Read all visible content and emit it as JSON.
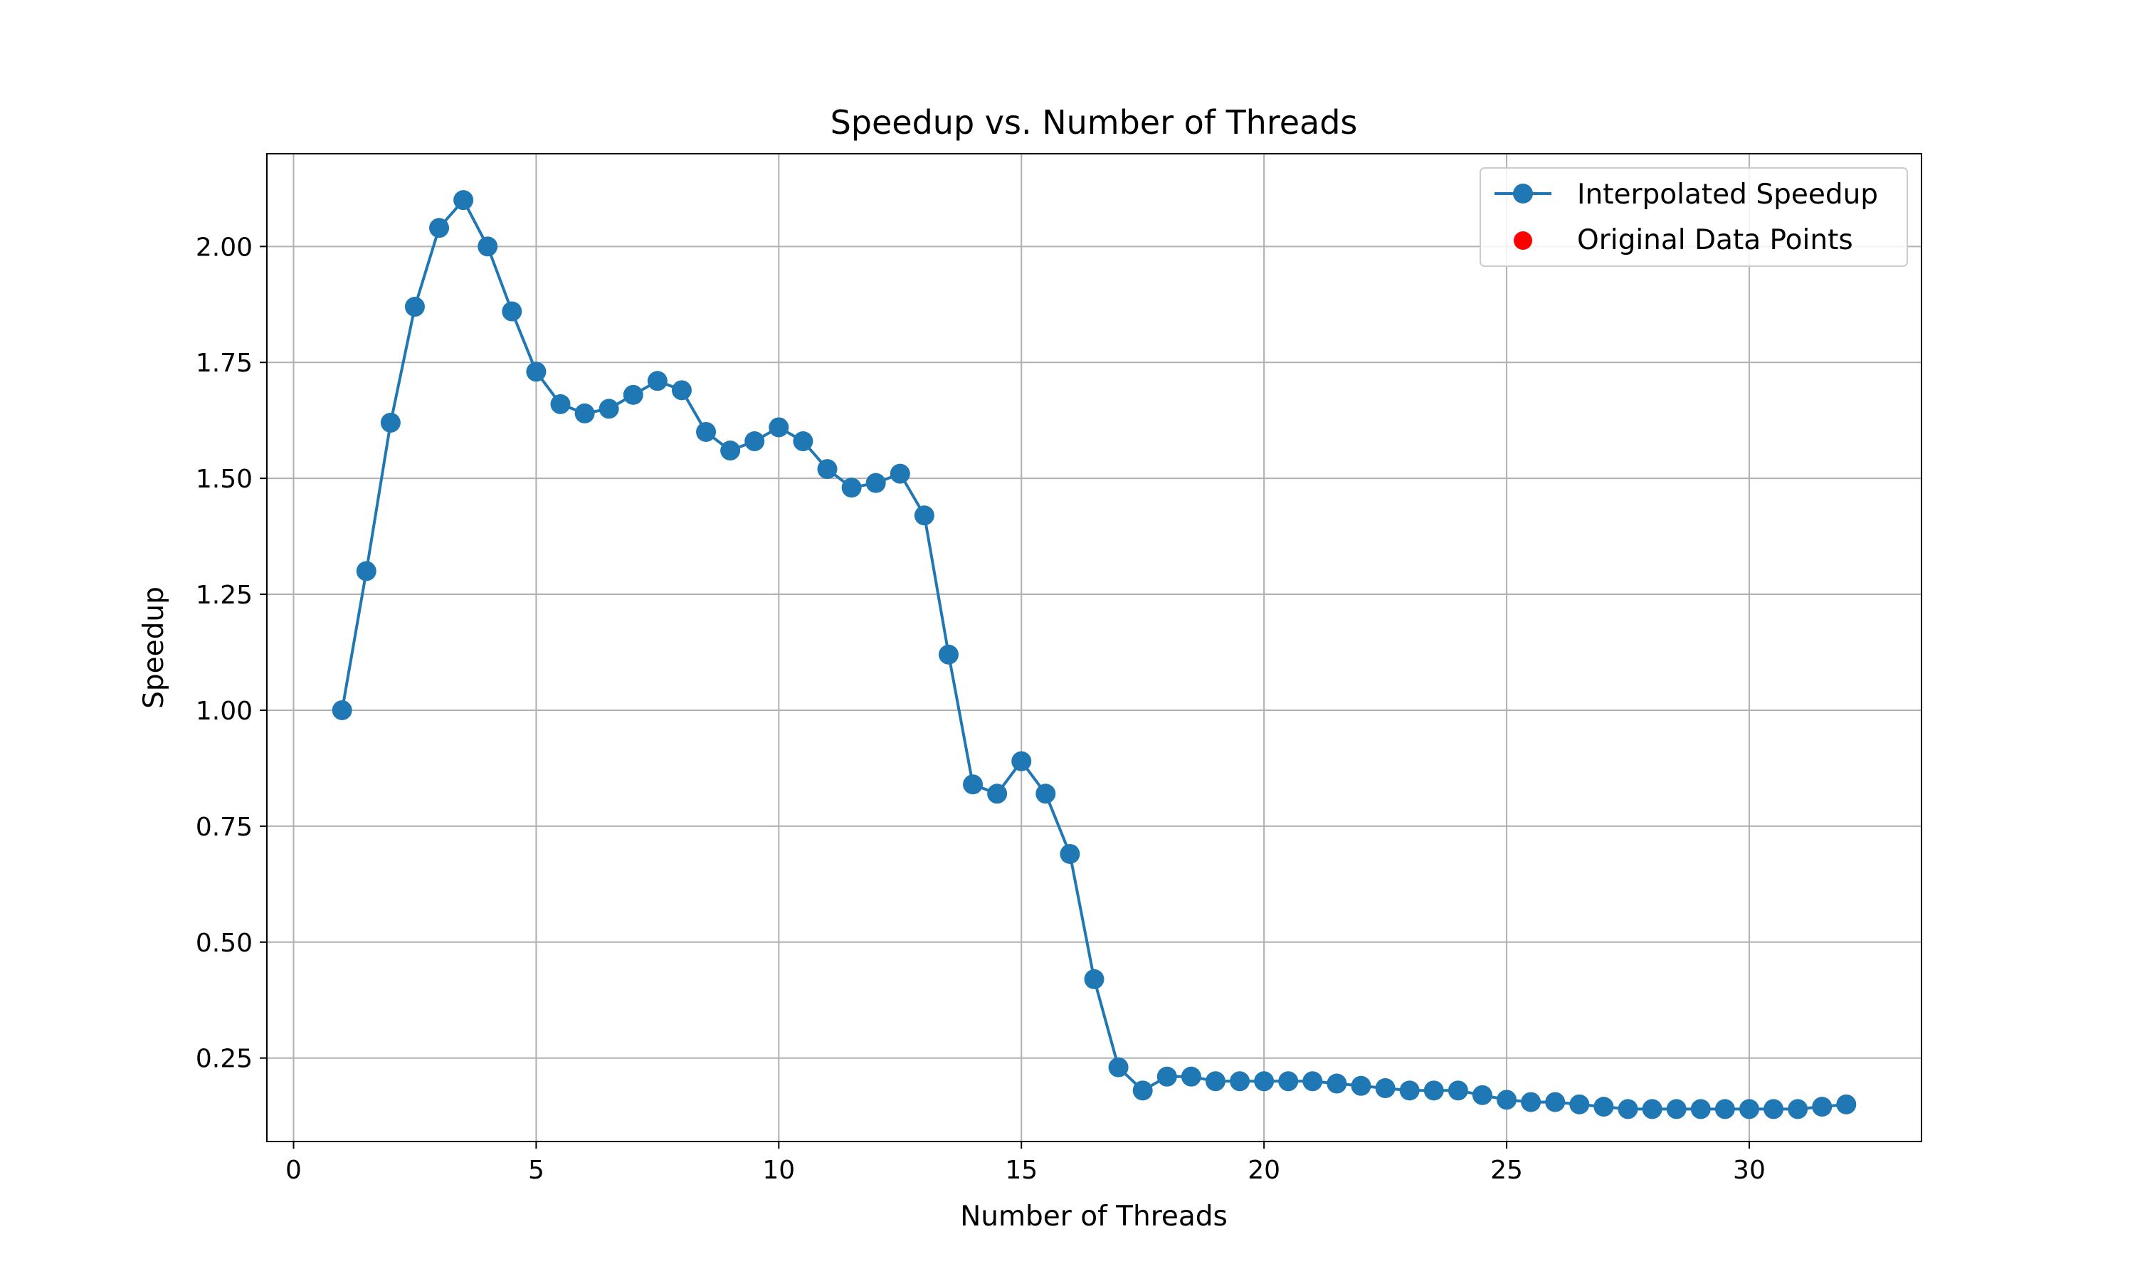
{
  "chart_data": {
    "type": "line",
    "title": "Speedup vs. Number of Threads",
    "xlabel": "Number of Threads",
    "ylabel": "Speedup",
    "xlim": [
      -0.55,
      33.55
    ],
    "ylim": [
      0.07,
      2.2
    ],
    "xticks": [
      0,
      5,
      10,
      15,
      20,
      25,
      30
    ],
    "xtick_labels": [
      "0",
      "5",
      "10",
      "15",
      "20",
      "25",
      "30"
    ],
    "yticks": [
      0.25,
      0.5,
      0.75,
      1.0,
      1.25,
      1.5,
      1.75,
      2.0
    ],
    "ytick_labels": [
      "0.25",
      "0.50",
      "0.75",
      "1.00",
      "1.25",
      "1.50",
      "1.75",
      "2.00"
    ],
    "grid": true,
    "legend_position": "top-right",
    "series": [
      {
        "name": "Interpolated Speedup",
        "kind": "line-with-markers",
        "color": "#1f77b4",
        "x": [
          1,
          1.5,
          2,
          2.5,
          3,
          3.5,
          4,
          4.5,
          5,
          5.5,
          6,
          6.5,
          7,
          7.5,
          8,
          8.5,
          9,
          9.5,
          10,
          10.5,
          11,
          11.5,
          12,
          12.5,
          13,
          13.5,
          14,
          14.5,
          15,
          15.5,
          16,
          16.5,
          17,
          17.5,
          18,
          18.5,
          19,
          19.5,
          20,
          20.5,
          21,
          21.5,
          22,
          22.5,
          23,
          23.5,
          24,
          24.5,
          25,
          25.5,
          26,
          26.5,
          27,
          27.5,
          28,
          28.5,
          29,
          29.5,
          30,
          30.5,
          31,
          31.5,
          32
        ],
        "y": [
          1.0,
          1.3,
          1.62,
          1.87,
          2.04,
          2.1,
          2.0,
          1.86,
          1.73,
          1.66,
          1.64,
          1.65,
          1.68,
          1.71,
          1.69,
          1.6,
          1.56,
          1.58,
          1.61,
          1.58,
          1.52,
          1.48,
          1.49,
          1.51,
          1.42,
          1.12,
          0.84,
          0.82,
          0.89,
          0.82,
          0.69,
          0.42,
          0.23,
          0.18,
          0.21,
          0.21,
          0.2,
          0.2,
          0.2,
          0.2,
          0.2,
          0.195,
          0.19,
          0.185,
          0.18,
          0.18,
          0.18,
          0.17,
          0.16,
          0.155,
          0.155,
          0.15,
          0.145,
          0.14,
          0.14,
          0.14,
          0.14,
          0.14,
          0.14,
          0.14,
          0.14,
          0.145,
          0.15
        ]
      },
      {
        "name": "Original Data Points",
        "kind": "scatter",
        "color": "#ff0000",
        "x": [
          1,
          2,
          4,
          8,
          13,
          14,
          16,
          17,
          32
        ],
        "y": [
          1.0,
          1.62,
          2.0,
          1.69,
          1.42,
          0.84,
          0.69,
          0.23,
          0.15
        ]
      }
    ]
  }
}
